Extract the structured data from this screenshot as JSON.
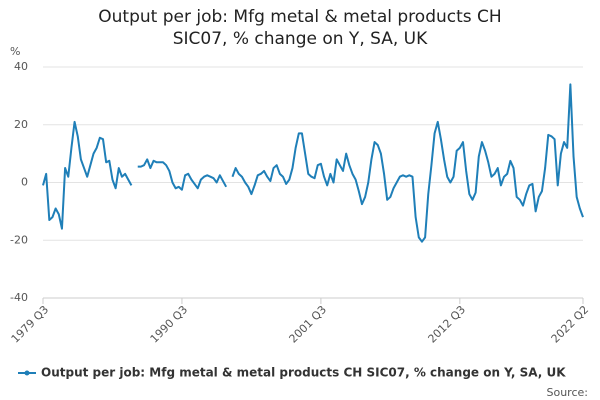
{
  "chart_data": {
    "type": "line",
    "title": "Output per job: Mfg metal & metal products CH SIC07, % change on Y, SA, UK",
    "y_label": "%",
    "source": "Source:",
    "categories": [
      "1979 Q3",
      null,
      null,
      null,
      null,
      null,
      null,
      null,
      null,
      null,
      null,
      null,
      null,
      null,
      null,
      null,
      null,
      null,
      null,
      null,
      null,
      null,
      null,
      null,
      null,
      null,
      null,
      null,
      null,
      null,
      null,
      null,
      null,
      null,
      null,
      null,
      null,
      null,
      null,
      null,
      null,
      null,
      null,
      null,
      "1990 Q3",
      null,
      null,
      null,
      null,
      null,
      null,
      null,
      null,
      null,
      null,
      null,
      null,
      null,
      null,
      null,
      null,
      null,
      null,
      null,
      null,
      null,
      null,
      null,
      null,
      null,
      null,
      null,
      null,
      null,
      null,
      null,
      null,
      null,
      null,
      null,
      null,
      null,
      null,
      null,
      null,
      null,
      null,
      null,
      "2001 Q3",
      null,
      null,
      null,
      null,
      null,
      null,
      null,
      null,
      null,
      null,
      null,
      null,
      null,
      null,
      null,
      null,
      null,
      null,
      null,
      null,
      null,
      null,
      null,
      null,
      null,
      null,
      null,
      null,
      null,
      null,
      null,
      null,
      null,
      null,
      null,
      null,
      null,
      null,
      null,
      null,
      null,
      null,
      null,
      "2012 Q3",
      null,
      null,
      null,
      null,
      null,
      null,
      null,
      null,
      null,
      null,
      null,
      null,
      null,
      null,
      null,
      null,
      null,
      null,
      null,
      null,
      null,
      null,
      null,
      null,
      null,
      null,
      null,
      null,
      null,
      null,
      null,
      null,
      null,
      null,
      null,
      null,
      null,
      null,
      "2022 Q2"
    ],
    "series": [
      {
        "name": "Output per job: Mfg metal & metal products CH SIC07, % change on Y, SA, UK",
        "color": "#1f7fb8",
        "values": [
          -1,
          3,
          -13,
          -12,
          -9,
          -11,
          -16,
          5,
          2,
          12,
          21,
          16,
          8,
          5,
          2,
          6,
          10,
          12,
          15.5,
          15,
          7,
          7.5,
          1,
          -2,
          5,
          2,
          3,
          1,
          -1,
          null,
          5.5,
          5.5,
          6,
          8,
          5,
          7.5,
          7,
          7,
          7,
          6,
          4,
          0,
          -2,
          -1.5,
          -2.5,
          2.5,
          3,
          1,
          -0.5,
          -2,
          1,
          2,
          2.5,
          2,
          1.5,
          0,
          2.5,
          0.5,
          -1.5,
          null,
          2,
          5,
          3,
          2,
          0,
          -1.5,
          -4,
          -1,
          2.5,
          3,
          4,
          2,
          0.5,
          5,
          6,
          3,
          2,
          -0.5,
          1,
          5,
          12,
          17,
          17,
          10,
          3,
          2,
          1.5,
          6,
          6.5,
          2,
          -1,
          3,
          0,
          8,
          6,
          4,
          10,
          6,
          3,
          1,
          -3,
          -7.5,
          -5,
          0,
          8,
          14,
          13,
          10,
          3,
          -6,
          -5,
          -2,
          0,
          2,
          2.5,
          2,
          2.5,
          2,
          -12,
          -19,
          -20.5,
          -19,
          -4,
          6,
          17,
          21,
          15,
          8,
          2,
          0,
          2,
          11,
          12,
          14,
          4,
          -4,
          -6,
          -3.5,
          9,
          14,
          11,
          7,
          2,
          3,
          5,
          -1,
          2,
          3,
          7.5,
          5,
          -5,
          -6,
          -8,
          -4,
          -1,
          -0.5,
          -10,
          -5,
          -3,
          5,
          16.5,
          16,
          15,
          -1,
          10,
          14,
          12,
          34,
          9,
          -5,
          -9,
          -12
        ]
      }
    ],
    "ylim": [
      -40,
      40
    ],
    "yticks": [
      -40,
      -20,
      0,
      20,
      40
    ],
    "grid": true
  }
}
